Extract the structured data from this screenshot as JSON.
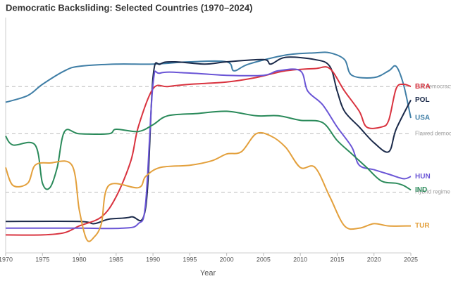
{
  "chart_data": {
    "type": "line",
    "title": "Democratic Backsliding: Selected Countries (1970–2024)",
    "x_label": "Year",
    "xlim": [
      1970,
      2025
    ],
    "xticks": [
      1970,
      1975,
      1980,
      1985,
      1990,
      1995,
      2000,
      2005,
      2010,
      2015,
      2020,
      2025
    ],
    "ylim": [
      0,
      1
    ],
    "thresholds": [
      {
        "value": 0.74,
        "label": "Full democracy"
      },
      {
        "value": 0.53,
        "label": "Flawed democracy"
      },
      {
        "value": 0.27,
        "label": "Hybrid regime"
      }
    ],
    "series": [
      {
        "name": "USA",
        "color": "#3f7ea6",
        "x": [
          1970,
          1973,
          1975,
          1978,
          1980,
          1985,
          1990,
          1995,
          2000,
          2001,
          2003,
          2008,
          2012,
          2014,
          2016,
          2017,
          2020,
          2022,
          2023,
          2024,
          2025
        ],
        "values": [
          0.67,
          0.7,
          0.75,
          0.81,
          0.83,
          0.84,
          0.84,
          0.85,
          0.85,
          0.81,
          0.84,
          0.88,
          0.89,
          0.89,
          0.86,
          0.79,
          0.78,
          0.81,
          0.83,
          0.75,
          0.6
        ]
      },
      {
        "name": "POL",
        "color": "#1b2a4a",
        "x": [
          1970,
          1980,
          1982,
          1984,
          1987,
          1989,
          1990,
          1991,
          1993,
          1997,
          2000,
          2005,
          2006,
          2008,
          2012,
          2014,
          2015,
          2016,
          2018,
          2020,
          2022,
          2023,
          2025
        ],
        "values": [
          0.14,
          0.14,
          0.13,
          0.15,
          0.16,
          0.2,
          0.78,
          0.84,
          0.85,
          0.84,
          0.85,
          0.86,
          0.84,
          0.87,
          0.86,
          0.83,
          0.72,
          0.63,
          0.56,
          0.49,
          0.45,
          0.55,
          0.68
        ]
      },
      {
        "name": "BRA",
        "color": "#d9333f",
        "x": [
          1970,
          1975,
          1978,
          1980,
          1983,
          1985,
          1987,
          1988,
          1990,
          1992,
          1995,
          2000,
          2004,
          2008,
          2012,
          2014,
          2016,
          2018,
          2019,
          2021,
          2022,
          2023,
          2024,
          2025
        ],
        "values": [
          0.08,
          0.08,
          0.09,
          0.12,
          0.16,
          0.25,
          0.41,
          0.56,
          0.73,
          0.74,
          0.75,
          0.76,
          0.78,
          0.81,
          0.82,
          0.82,
          0.72,
          0.63,
          0.56,
          0.56,
          0.59,
          0.73,
          0.75,
          0.74
        ]
      },
      {
        "name": "HUN",
        "color": "#6a55d6",
        "x": [
          1970,
          1980,
          1986,
          1988,
          1989,
          1990,
          1991,
          1995,
          2000,
          2005,
          2007,
          2010,
          2011,
          2013,
          2015,
          2017,
          2018,
          2020,
          2022,
          2024,
          2025
        ],
        "values": [
          0.11,
          0.11,
          0.11,
          0.13,
          0.22,
          0.75,
          0.8,
          0.8,
          0.79,
          0.79,
          0.81,
          0.81,
          0.72,
          0.66,
          0.56,
          0.47,
          0.39,
          0.37,
          0.35,
          0.33,
          0.34
        ]
      },
      {
        "name": "IND",
        "color": "#2a8a5a",
        "x": [
          1970,
          1971,
          1974,
          1975,
          1976,
          1977,
          1978,
          1980,
          1984,
          1985,
          1988,
          1990,
          1992,
          1996,
          2000,
          2004,
          2007,
          2010,
          2013,
          2015,
          2017,
          2019,
          2021,
          2023,
          2024,
          2025
        ],
        "values": [
          0.52,
          0.48,
          0.48,
          0.31,
          0.29,
          0.38,
          0.54,
          0.53,
          0.53,
          0.55,
          0.54,
          0.57,
          0.61,
          0.62,
          0.63,
          0.61,
          0.61,
          0.59,
          0.58,
          0.5,
          0.44,
          0.38,
          0.32,
          0.31,
          0.3,
          0.28
        ]
      },
      {
        "name": "TUR",
        "color": "#e3a03c",
        "x": [
          1970,
          1971,
          1973,
          1974,
          1976,
          1979,
          1980,
          1981,
          1982,
          1983,
          1984,
          1988,
          1989,
          1991,
          1995,
          1998,
          2000,
          2002,
          2004,
          2006,
          2008,
          2010,
          2012,
          2014,
          2016,
          2018,
          2020,
          2022,
          2025
        ],
        "values": [
          0.38,
          0.3,
          0.31,
          0.39,
          0.4,
          0.39,
          0.19,
          0.06,
          0.07,
          0.13,
          0.3,
          0.29,
          0.34,
          0.38,
          0.39,
          0.41,
          0.44,
          0.45,
          0.53,
          0.52,
          0.47,
          0.38,
          0.38,
          0.25,
          0.12,
          0.11,
          0.13,
          0.12,
          0.12
        ]
      }
    ]
  }
}
